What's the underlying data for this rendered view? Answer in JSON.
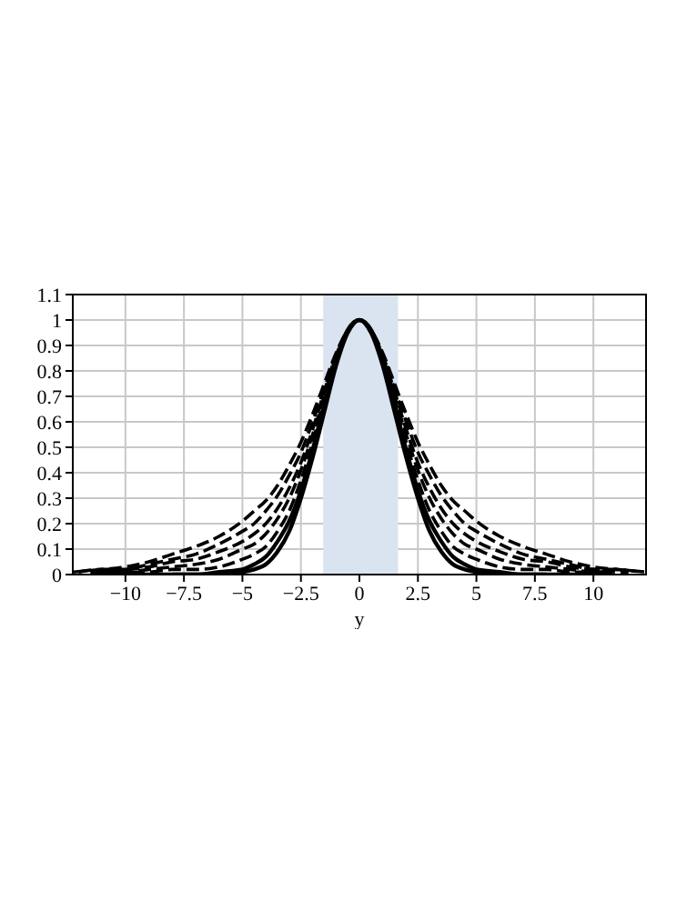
{
  "chart_data": {
    "type": "line",
    "xlabel": "y",
    "x": [
      -12.25,
      -11,
      -10,
      -9,
      -8,
      -7,
      -6,
      -5,
      -4.5,
      -4,
      -3.5,
      -3,
      -2.5,
      -2,
      -1.5,
      -1,
      -0.5,
      0,
      0.5,
      1,
      1.5,
      2,
      2.5,
      3,
      3.5,
      4,
      4.5,
      5,
      6,
      7,
      8,
      9,
      10,
      11,
      12.25
    ],
    "series": [
      {
        "color": "#000000",
        "line_style": "solid",
        "x": [
          -8,
          -7,
          -6,
          -5,
          -4.5,
          -4,
          -3.5,
          -3,
          -2.5,
          -2,
          -1.5,
          -1,
          -0.5,
          0,
          0.5,
          1,
          1.5,
          2,
          2.5,
          3,
          3.5,
          4,
          4.5,
          5,
          6,
          7,
          8
        ],
        "values": [
          0,
          0,
          0,
          0.01,
          0.02,
          0.04,
          0.09,
          0.17,
          0.3,
          0.46,
          0.64,
          0.82,
          0.95,
          1,
          0.95,
          0.82,
          0.64,
          0.46,
          0.3,
          0.17,
          0.09,
          0.04,
          0.02,
          0.01,
          0,
          0,
          0
        ]
      },
      {
        "color": "#000000",
        "line_style": "solid",
        "x": [
          -10,
          -9,
          -8,
          -7,
          -6,
          -5,
          -4.5,
          -4,
          -3.5,
          -3,
          -2.5,
          -2,
          -1.5,
          -1,
          -0.5,
          0,
          0.5,
          1,
          1.5,
          2,
          2.5,
          3,
          3.5,
          4,
          4.5,
          5,
          6,
          7,
          8,
          9,
          10
        ],
        "values": [
          0,
          0,
          0,
          0,
          0.01,
          0.02,
          0.04,
          0.07,
          0.13,
          0.21,
          0.33,
          0.49,
          0.67,
          0.84,
          0.96,
          1,
          0.96,
          0.84,
          0.67,
          0.49,
          0.33,
          0.21,
          0.13,
          0.07,
          0.04,
          0.02,
          0.01,
          0,
          0,
          0,
          0
        ]
      },
      {
        "color": "#000000",
        "line_style": "dashed",
        "x": [
          -10.5,
          -10,
          -9,
          -8,
          -7,
          -6,
          -5,
          -4.5,
          -4,
          -3.5,
          -3,
          -2.5,
          -2,
          -1.5,
          -1,
          -0.5,
          0,
          0.5,
          1,
          1.5,
          2,
          2.5,
          3,
          3.5,
          4,
          4.5,
          5,
          6,
          7,
          8,
          9,
          10,
          10.5
        ],
        "values": [
          0.01,
          0.01,
          0.01,
          0.02,
          0.02,
          0.03,
          0.06,
          0.08,
          0.11,
          0.17,
          0.25,
          0.37,
          0.52,
          0.69,
          0.84,
          0.96,
          1,
          0.96,
          0.84,
          0.69,
          0.52,
          0.37,
          0.25,
          0.17,
          0.11,
          0.08,
          0.06,
          0.03,
          0.02,
          0.02,
          0.01,
          0.01,
          0.01
        ]
      },
      {
        "color": "#000000",
        "line_style": "dashed",
        "x": [
          -11,
          -10,
          -9,
          -8,
          -7,
          -6,
          -5,
          -4.5,
          -4,
          -3.5,
          -3,
          -2.5,
          -2,
          -1.5,
          -1,
          -0.5,
          0,
          0.5,
          1,
          1.5,
          2,
          2.5,
          3,
          3.5,
          4,
          4.5,
          5,
          6,
          7,
          8,
          9,
          10,
          11
        ],
        "values": [
          0.01,
          0.01,
          0.02,
          0.03,
          0.04,
          0.06,
          0.1,
          0.12,
          0.16,
          0.22,
          0.3,
          0.41,
          0.55,
          0.7,
          0.85,
          0.96,
          1,
          0.96,
          0.85,
          0.7,
          0.55,
          0.41,
          0.3,
          0.22,
          0.16,
          0.12,
          0.1,
          0.06,
          0.04,
          0.03,
          0.02,
          0.01,
          0.01
        ]
      },
      {
        "color": "#000000",
        "line_style": "dashed",
        "x": [
          -11.5,
          -11,
          -10,
          -9,
          -8,
          -7,
          -6,
          -5,
          -4.5,
          -4,
          -3.5,
          -3,
          -2.5,
          -2,
          -1.5,
          -1,
          -0.5,
          0,
          0.5,
          1,
          1.5,
          2,
          2.5,
          3,
          3.5,
          4,
          4.5,
          5,
          6,
          7,
          8,
          9,
          10,
          11,
          11.5
        ],
        "values": [
          0.01,
          0.01,
          0.02,
          0.03,
          0.05,
          0.06,
          0.09,
          0.13,
          0.16,
          0.2,
          0.26,
          0.34,
          0.44,
          0.57,
          0.72,
          0.86,
          0.96,
          1,
          0.96,
          0.86,
          0.72,
          0.57,
          0.44,
          0.34,
          0.26,
          0.2,
          0.16,
          0.13,
          0.09,
          0.06,
          0.05,
          0.03,
          0.02,
          0.01,
          0.01
        ]
      },
      {
        "color": "#000000",
        "line_style": "dashed",
        "x": [
          -12,
          -11,
          -10,
          -9,
          -8,
          -7,
          -6,
          -5,
          -4.5,
          -4,
          -3.5,
          -3,
          -2.5,
          -2,
          -1.5,
          -1,
          -0.5,
          0,
          0.5,
          1,
          1.5,
          2,
          2.5,
          3,
          3.5,
          4,
          4.5,
          5,
          6,
          7,
          8,
          9,
          10,
          11,
          12
        ],
        "values": [
          0.01,
          0.02,
          0.02,
          0.04,
          0.06,
          0.08,
          0.12,
          0.17,
          0.2,
          0.25,
          0.31,
          0.39,
          0.48,
          0.6,
          0.73,
          0.86,
          0.96,
          1,
          0.96,
          0.86,
          0.73,
          0.6,
          0.48,
          0.39,
          0.31,
          0.25,
          0.2,
          0.17,
          0.12,
          0.08,
          0.06,
          0.04,
          0.02,
          0.02,
          0.01
        ]
      },
      {
        "color": "#000000",
        "line_style": "dashed",
        "values": [
          0.01,
          0.02,
          0.03,
          0.05,
          0.08,
          0.11,
          0.15,
          0.21,
          0.25,
          0.29,
          0.35,
          0.43,
          0.52,
          0.63,
          0.75,
          0.87,
          0.96,
          1,
          0.96,
          0.87,
          0.75,
          0.63,
          0.52,
          0.43,
          0.35,
          0.29,
          0.25,
          0.21,
          0.15,
          0.11,
          0.08,
          0.05,
          0.03,
          0.02,
          0.01
        ]
      }
    ],
    "xlim": [
      -12.25,
      12.25
    ],
    "xticks": [
      {
        "value": -10,
        "label": "−10"
      },
      {
        "value": -7.5,
        "label": "−7.5"
      },
      {
        "value": -5,
        "label": "−5"
      },
      {
        "value": -2.5,
        "label": "−2.5"
      },
      0,
      2.5,
      5,
      7.5,
      10
    ],
    "ylim": [
      0,
      1.1
    ],
    "yticks": [
      0,
      0.1,
      0.2,
      0.3,
      0.4,
      0.5,
      0.6,
      0.7,
      0.8,
      0.9,
      1,
      1.1
    ],
    "bands": [
      {
        "axis": "x",
        "from": -1.55,
        "to": 1.65,
        "color": "#dae4f0"
      }
    ],
    "grid": true,
    "marker": "none"
  }
}
